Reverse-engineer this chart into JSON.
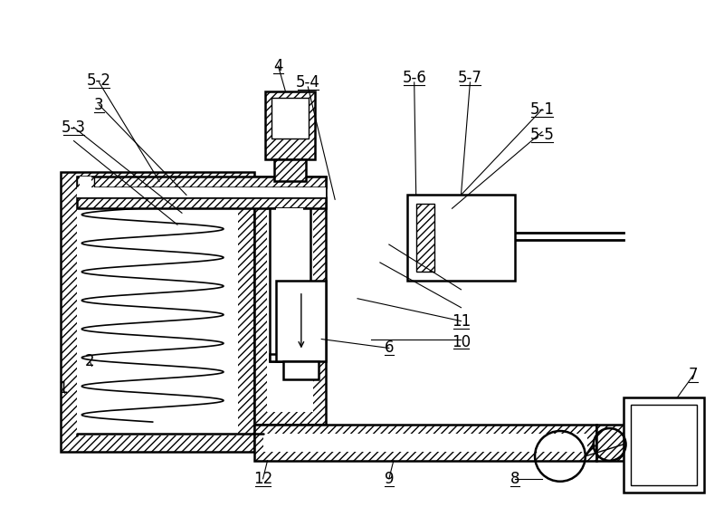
{
  "bg_color": "#ffffff",
  "lc": "#000000",
  "figsize": [
    8.0,
    5.6
  ],
  "dpi": 100,
  "lw_main": 1.8,
  "lw_thin": 1.0,
  "lw_label": 0.8,
  "hatch": "////"
}
